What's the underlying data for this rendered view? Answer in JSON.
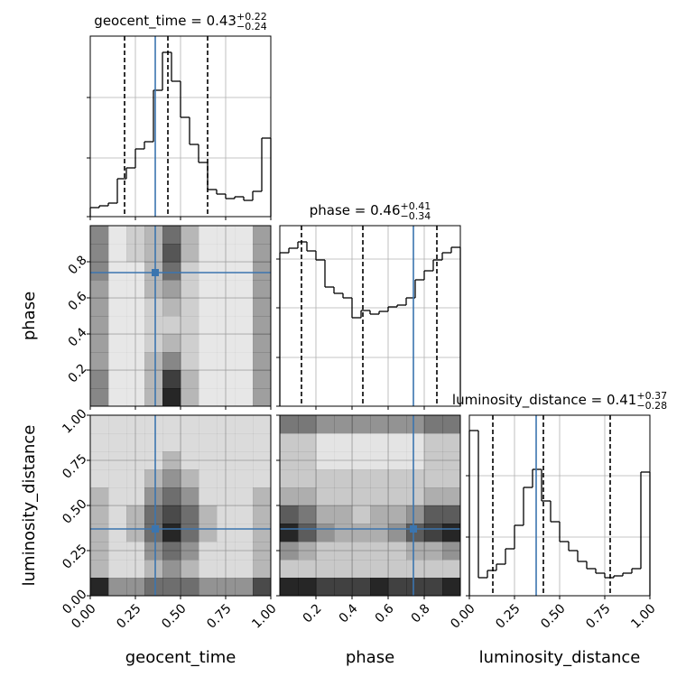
{
  "chart_data": [
    {
      "type": "histogram",
      "title": "geocent_time = 0.43",
      "title_sup": "+0.22",
      "title_sub": "−0.24",
      "bins": [
        0,
        0.05,
        0.1,
        0.15,
        0.2,
        0.25,
        0.3,
        0.35,
        0.4,
        0.45,
        0.5,
        0.55,
        0.6,
        0.65,
        0.7,
        0.75,
        0.8,
        0.85,
        0.9,
        0.95,
        1
      ],
      "values": [
        10,
        12,
        15,
        42,
        54,
        75,
        83,
        140,
        182,
        150,
        110,
        80,
        60,
        30,
        25,
        20,
        22,
        18,
        28,
        87
      ],
      "quantiles": [
        0.19,
        0.43,
        0.65
      ],
      "truth": 0.36,
      "color": "#000000",
      "truth_color": "#3b75af",
      "xlim": [
        0,
        1
      ],
      "xticks": [
        0,
        0.25,
        0.5,
        0.75,
        1
      ],
      "ylim": [
        0,
        200
      ],
      "yticks": [
        0,
        65,
        132
      ],
      "grid": true
    },
    {
      "type": "hist2d",
      "truth": [
        0.36,
        0.74
      ],
      "truth_color": "#3b75af",
      "xlim": [
        0,
        1
      ],
      "xticks": [
        0,
        0.25,
        0.5,
        0.75,
        1
      ],
      "ylim": [
        0,
        1
      ],
      "yticks": [
        0.2,
        0.4,
        0.6,
        0.8
      ],
      "ylabel": "phase",
      "grid": true,
      "values": [
        [
          5,
          1,
          1,
          3,
          9,
          3,
          1,
          1,
          1,
          4
        ],
        [
          5,
          1,
          1,
          3,
          8,
          3,
          1,
          1,
          1,
          4
        ],
        [
          4,
          1,
          1,
          3,
          5,
          2,
          1,
          1,
          1,
          4
        ],
        [
          4,
          1,
          1,
          2,
          3,
          2,
          1,
          1,
          1,
          4
        ],
        [
          4,
          1,
          1,
          2,
          2,
          2,
          1,
          1,
          1,
          4
        ],
        [
          4,
          1,
          1,
          2,
          3,
          2,
          1,
          1,
          1,
          4
        ],
        [
          4,
          1,
          1,
          3,
          4,
          2,
          1,
          1,
          1,
          4
        ],
        [
          5,
          1,
          1,
          3,
          6,
          2,
          1,
          1,
          1,
          4
        ],
        [
          5,
          1,
          2,
          3,
          7,
          3,
          1,
          1,
          1,
          4
        ],
        [
          5,
          1,
          2,
          3,
          6,
          3,
          1,
          1,
          1,
          4
        ]
      ]
    },
    {
      "type": "histogram",
      "title": "phase = 0.46",
      "title_sup": "+0.41",
      "title_sub": "−0.34",
      "bins": [
        0,
        0.05,
        0.1,
        0.15,
        0.2,
        0.25,
        0.3,
        0.35,
        0.4,
        0.45,
        0.5,
        0.55,
        0.6,
        0.65,
        0.7,
        0.75,
        0.8,
        0.85,
        0.9,
        0.95,
        1
      ],
      "values": [
        170,
        175,
        182,
        172,
        162,
        132,
        125,
        120,
        98,
        106,
        102,
        105,
        110,
        112,
        120,
        140,
        150,
        162,
        170,
        176
      ],
      "quantiles": [
        0.12,
        0.46,
        0.87
      ],
      "truth": 0.74,
      "color": "#000000",
      "truth_color": "#3b75af",
      "xlim": [
        0,
        1
      ],
      "xticks": [
        0.2,
        0.4,
        0.6,
        0.8
      ],
      "ylim": [
        0,
        200
      ],
      "yticks": [
        0,
        54,
        109,
        163
      ],
      "grid": true
    },
    {
      "type": "hist2d",
      "truth": [
        0.36,
        0.37
      ],
      "truth_color": "#3b75af",
      "xlim": [
        0,
        1
      ],
      "xticks": [
        {
          "value": 0,
          "label": "0.00"
        },
        {
          "value": 0.25,
          "label": "0.25"
        },
        {
          "value": 0.5,
          "label": "0.50"
        },
        {
          "value": 0.75,
          "label": "0.75"
        },
        {
          "value": 1,
          "label": "1.00"
        }
      ],
      "xlabel": "geocent_time",
      "ylim": [
        0,
        1
      ],
      "yticks": [
        {
          "value": 0,
          "label": "0.00"
        },
        {
          "value": 0.25,
          "label": "0.25"
        },
        {
          "value": 0.5,
          "label": "0.50"
        },
        {
          "value": 0.75,
          "label": "0.75"
        },
        {
          "value": 1,
          "label": "1.00"
        }
      ],
      "ylabel": "luminosity_distance",
      "grid": true,
      "values": [
        [
          6,
          3,
          3,
          4,
          4,
          4,
          3,
          3,
          3,
          5
        ],
        [
          2,
          1,
          1,
          2,
          3,
          2,
          1,
          1,
          1,
          2
        ],
        [
          2,
          1,
          1,
          3,
          4,
          3,
          1,
          1,
          1,
          2
        ],
        [
          2,
          1,
          2,
          4,
          6,
          4,
          2,
          1,
          1,
          2
        ],
        [
          2,
          1,
          2,
          4,
          5,
          4,
          2,
          1,
          1,
          2
        ],
        [
          2,
          1,
          1,
          3,
          4,
          3,
          1,
          1,
          1,
          2
        ],
        [
          1,
          1,
          1,
          2,
          3,
          2,
          1,
          1,
          1,
          1
        ],
        [
          1,
          1,
          1,
          1,
          2,
          1,
          1,
          1,
          1,
          1
        ],
        [
          1,
          1,
          1,
          1,
          1,
          1,
          1,
          1,
          1,
          1
        ],
        [
          1,
          1,
          1,
          1,
          1,
          1,
          1,
          1,
          1,
          1
        ]
      ]
    },
    {
      "type": "hist2d",
      "truth": [
        0.74,
        0.37
      ],
      "truth_color": "#3b75af",
      "xlim": [
        0,
        1
      ],
      "xticks": [
        0.2,
        0.4,
        0.6,
        0.8
      ],
      "xlabel": "phase",
      "ylim": [
        0,
        1
      ],
      "yticks": [
        0,
        0.25,
        0.5,
        0.75,
        1
      ],
      "grid": true,
      "values": [
        [
          8,
          8,
          7,
          7,
          7,
          8,
          7,
          7,
          7,
          8
        ],
        [
          2,
          2,
          2,
          2,
          2,
          2,
          2,
          2,
          2,
          2
        ],
        [
          4,
          3,
          2,
          2,
          2,
          2,
          2,
          3,
          3,
          4
        ],
        [
          8,
          6,
          4,
          3,
          3,
          3,
          4,
          6,
          7,
          8
        ],
        [
          6,
          5,
          3,
          3,
          2,
          3,
          3,
          4,
          6,
          6
        ],
        [
          3,
          3,
          2,
          2,
          2,
          2,
          2,
          2,
          3,
          3
        ],
        [
          2,
          2,
          2,
          2,
          2,
          2,
          2,
          2,
          2,
          2
        ],
        [
          2,
          2,
          1,
          1,
          1,
          1,
          1,
          1,
          2,
          2
        ],
        [
          2,
          2,
          1,
          1,
          1,
          1,
          1,
          1,
          2,
          2
        ],
        [
          5,
          5,
          4,
          4,
          4,
          4,
          4,
          4,
          5,
          5
        ]
      ]
    },
    {
      "type": "histogram",
      "title": "luminosity_distance = 0.41",
      "title_sup": "+0.37",
      "title_sub": "−0.28",
      "bins": [
        0,
        0.05,
        0.1,
        0.15,
        0.2,
        0.25,
        0.3,
        0.35,
        0.4,
        0.45,
        0.5,
        0.55,
        0.6,
        0.65,
        0.7,
        0.75,
        0.8,
        0.85,
        0.9,
        0.95,
        1
      ],
      "values": [
        183,
        20,
        28,
        35,
        52,
        78,
        120,
        140,
        105,
        82,
        60,
        50,
        38,
        30,
        25,
        20,
        22,
        25,
        30,
        137
      ],
      "quantiles": [
        0.13,
        0.41,
        0.78
      ],
      "truth": 0.37,
      "color": "#000000",
      "truth_color": "#3b75af",
      "xlim": [
        0,
        1
      ],
      "xticks": [
        {
          "value": 0,
          "label": "0.00"
        },
        {
          "value": 0.25,
          "label": "0.25"
        },
        {
          "value": 0.5,
          "label": "0.50"
        },
        {
          "value": 0.75,
          "label": "0.75"
        },
        {
          "value": 1,
          "label": "1.00"
        }
      ],
      "xlabel": "luminosity_distance",
      "ylim": [
        0,
        200
      ],
      "yticks": [
        0,
        65,
        133
      ],
      "grid": true
    }
  ]
}
